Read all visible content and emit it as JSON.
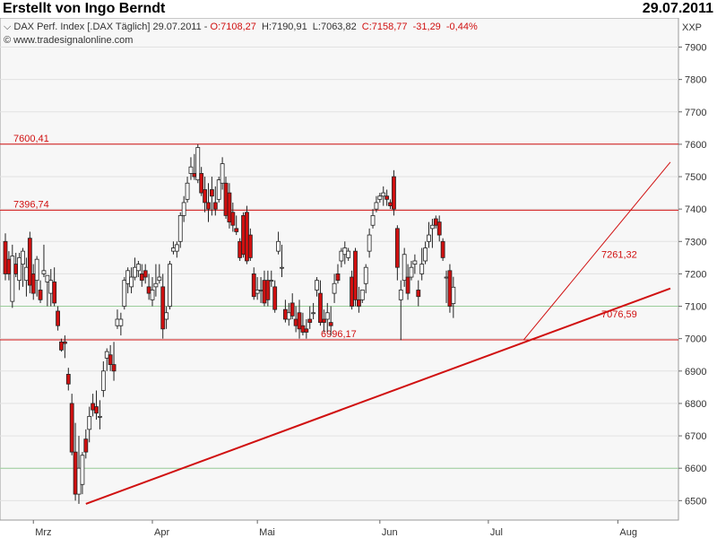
{
  "header": {
    "author": "Erstellt von Ingo Berndt",
    "date": "29.07.2011"
  },
  "chart_data": {
    "type": "candlestick",
    "symbol_label": "DAX Perf. Index [.DAX Täglich] 29.07.2011 -",
    "ohlc_text": {
      "open": "O:7108,27",
      "high": "H:7190,91",
      "low": "L:7063,82",
      "close": "C:7158,77",
      "change": "-31,29",
      "change_pct": "-0,44%"
    },
    "source": "www.tradesignalonline.com",
    "unit_label": "XXP",
    "ylim": [
      6440,
      7990
    ],
    "yticks": [
      6500,
      6600,
      6700,
      6800,
      6900,
      7000,
      7100,
      7200,
      7300,
      7400,
      7500,
      7600,
      7700,
      7800,
      7900
    ],
    "xticks": [
      {
        "label": "Mrz",
        "i": 8
      },
      {
        "label": "Apr",
        "i": 42
      },
      {
        "label": "Mai",
        "i": 72
      },
      {
        "label": "Jun",
        "i": 107
      },
      {
        "label": "Jul",
        "i": 138
      },
      {
        "label": "Aug",
        "i": 175
      }
    ],
    "green_lines": [
      7100,
      6600
    ],
    "levels": [
      {
        "value": 7600.41,
        "label": "7600,41"
      },
      {
        "value": 7396.74,
        "label": "7396,74"
      },
      {
        "value": 6996.17,
        "label": "6996,17"
      }
    ],
    "trendlines": [
      {
        "from": [
          23,
          6490
        ],
        "to": [
          190,
          7155
        ],
        "width": 2,
        "label": "7076,59",
        "label_value": 7076.59
      },
      {
        "from": [
          148,
          6995
        ],
        "to": [
          190,
          7545
        ],
        "width": 1,
        "label": "7261,32",
        "label_value": 7261.32
      }
    ],
    "candles": [
      [
        7300,
        7325,
        7180,
        7200
      ],
      [
        7245,
        7270,
        7180,
        7200
      ],
      [
        7115,
        7290,
        7095,
        7255
      ],
      [
        7230,
        7265,
        7190,
        7200
      ],
      [
        7180,
        7265,
        7150,
        7250
      ],
      [
        7230,
        7280,
        7160,
        7270
      ],
      [
        7180,
        7250,
        7130,
        7220
      ],
      [
        7310,
        7330,
        7140,
        7165
      ],
      [
        7200,
        7230,
        7120,
        7140
      ],
      [
        7180,
        7255,
        7130,
        7245
      ],
      [
        7150,
        7180,
        7110,
        7120
      ],
      [
        7200,
        7290,
        7190,
        7210
      ],
      [
        7175,
        7195,
        7100,
        7195
      ],
      [
        7140,
        7215,
        7100,
        7180
      ],
      [
        7175,
        7220,
        7100,
        7110
      ],
      [
        7085,
        7100,
        7025,
        7040
      ],
      [
        6990,
        7000,
        6960,
        6965
      ],
      [
        6990,
        7010,
        6940,
        6985
      ],
      [
        6890,
        6910,
        6840,
        6860
      ],
      [
        6800,
        6830,
        6640,
        6650
      ],
      [
        6650,
        6740,
        6500,
        6520
      ],
      [
        6520,
        6700,
        6490,
        6600
      ],
      [
        6550,
        6650,
        6520,
        6640
      ],
      [
        6690,
        6720,
        6630,
        6650
      ],
      [
        6720,
        6790,
        6680,
        6760
      ],
      [
        6800,
        6830,
        6760,
        6780
      ],
      [
        6790,
        6840,
        6750,
        6770
      ],
      [
        6760,
        6810,
        6720,
        6760
      ],
      [
        6840,
        6930,
        6820,
        6900
      ],
      [
        6940,
        6970,
        6900,
        6960
      ],
      [
        6950,
        6980,
        6900,
        6920
      ],
      [
        6920,
        6990,
        6870,
        6900
      ],
      [
        7040,
        7090,
        7030,
        7060
      ],
      [
        7040,
        7080,
        7010,
        7060
      ],
      [
        7100,
        7190,
        7090,
        7180
      ],
      [
        7170,
        7220,
        7140,
        7210
      ],
      [
        7160,
        7220,
        7140,
        7190
      ],
      [
        7190,
        7250,
        7180,
        7220
      ],
      [
        7210,
        7240,
        7190,
        7230
      ],
      [
        7200,
        7230,
        7160,
        7180
      ],
      [
        7210,
        7230,
        7170,
        7190
      ],
      [
        7160,
        7200,
        7120,
        7140
      ],
      [
        7120,
        7190,
        7100,
        7150
      ],
      [
        7160,
        7230,
        7130,
        7170
      ],
      [
        7180,
        7230,
        7170,
        7190
      ],
      [
        7160,
        7200,
        7000,
        7030
      ],
      [
        7060,
        7100,
        7030,
        7080
      ],
      [
        7100,
        7240,
        7090,
        7230
      ],
      [
        7270,
        7300,
        7260,
        7280
      ],
      [
        7270,
        7300,
        7250,
        7290
      ],
      [
        7300,
        7390,
        7280,
        7380
      ],
      [
        7380,
        7440,
        7360,
        7420
      ],
      [
        7430,
        7500,
        7420,
        7480
      ],
      [
        7510,
        7560,
        7490,
        7530
      ],
      [
        7510,
        7570,
        7490,
        7500
      ],
      [
        7490,
        7600,
        7480,
        7590
      ],
      [
        7510,
        7530,
        7440,
        7450
      ],
      [
        7460,
        7500,
        7390,
        7420
      ],
      [
        7420,
        7480,
        7360,
        7400
      ],
      [
        7460,
        7500,
        7380,
        7440
      ],
      [
        7420,
        7470,
        7380,
        7400
      ],
      [
        7430,
        7500,
        7420,
        7490
      ],
      [
        7480,
        7560,
        7460,
        7540
      ],
      [
        7480,
        7500,
        7370,
        7380
      ],
      [
        7450,
        7480,
        7340,
        7360
      ],
      [
        7390,
        7420,
        7330,
        7350
      ],
      [
        7340,
        7380,
        7320,
        7330
      ],
      [
        7300,
        7310,
        7240,
        7250
      ],
      [
        7380,
        7390,
        7250,
        7260
      ],
      [
        7390,
        7410,
        7230,
        7240
      ],
      [
        7320,
        7340,
        7240,
        7250
      ],
      [
        7200,
        7220,
        7120,
        7130
      ],
      [
        7140,
        7190,
        7120,
        7150
      ],
      [
        7150,
        7190,
        7110,
        7150
      ],
      [
        7180,
        7210,
        7100,
        7110
      ],
      [
        7180,
        7210,
        7100,
        7120
      ],
      [
        7180,
        7210,
        7160,
        7180
      ],
      [
        7160,
        7180,
        7080,
        7090
      ],
      [
        7270,
        7330,
        7260,
        7300
      ],
      [
        7220,
        7290,
        7190,
        7220
      ],
      [
        7090,
        7120,
        7050,
        7060
      ],
      [
        7060,
        7110,
        7040,
        7080
      ],
      [
        7110,
        7140,
        7060,
        7070
      ],
      [
        7060,
        7100,
        7020,
        7040
      ],
      [
        7080,
        7120,
        7000,
        7030
      ],
      [
        7040,
        7080,
        7010,
        7020
      ],
      [
        7030,
        7060,
        7000,
        7020
      ],
      [
        7060,
        7100,
        7030,
        7050
      ],
      [
        7080,
        7110,
        7060,
        7080
      ],
      [
        7150,
        7190,
        7130,
        7180
      ],
      [
        7140,
        7180,
        7040,
        7050
      ],
      [
        7060,
        7090,
        7020,
        7050
      ],
      [
        7060,
        7110,
        7020,
        7080
      ],
      [
        7050,
        7100,
        7010,
        7040
      ],
      [
        7140,
        7200,
        7110,
        7170
      ],
      [
        7200,
        7230,
        7170,
        7180
      ],
      [
        7240,
        7280,
        7220,
        7270
      ],
      [
        7260,
        7300,
        7230,
        7280
      ],
      [
        7250,
        7280,
        7240,
        7270
      ],
      [
        7190,
        7210,
        7090,
        7100
      ],
      [
        7270,
        7280,
        7100,
        7120
      ],
      [
        7120,
        7160,
        7080,
        7100
      ],
      [
        7120,
        7150,
        7110,
        7150
      ],
      [
        7170,
        7230,
        7140,
        7220
      ],
      [
        7270,
        7340,
        7250,
        7320
      ],
      [
        7350,
        7400,
        7340,
        7380
      ],
      [
        7400,
        7440,
        7390,
        7420
      ],
      [
        7430,
        7450,
        7420,
        7440
      ],
      [
        7440,
        7470,
        7410,
        7450
      ],
      [
        7440,
        7460,
        7410,
        7430
      ],
      [
        7420,
        7430,
        7400,
        7410
      ],
      [
        7500,
        7520,
        7380,
        7400
      ],
      [
        7340,
        7350,
        7180,
        7220
      ],
      [
        7120,
        7180,
        6995,
        7150
      ],
      [
        7180,
        7280,
        7160,
        7260
      ],
      [
        7190,
        7230,
        7120,
        7140
      ],
      [
        7190,
        7240,
        7180,
        7220
      ],
      [
        7230,
        7260,
        7200,
        7240
      ],
      [
        7150,
        7180,
        7100,
        7130
      ],
      [
        7200,
        7280,
        7180,
        7230
      ],
      [
        7240,
        7300,
        7230,
        7280
      ],
      [
        7300,
        7360,
        7280,
        7320
      ],
      [
        7340,
        7370,
        7280,
        7350
      ],
      [
        7370,
        7380,
        7340,
        7350
      ],
      [
        7360,
        7380,
        7300,
        7320
      ],
      [
        7300,
        7310,
        7240,
        7250
      ],
      [
        7190,
        7210,
        7110,
        7190
      ],
      [
        7210,
        7230,
        7080,
        7100
      ],
      [
        7108.27,
        7190.91,
        7063.82,
        7158.77
      ]
    ]
  }
}
